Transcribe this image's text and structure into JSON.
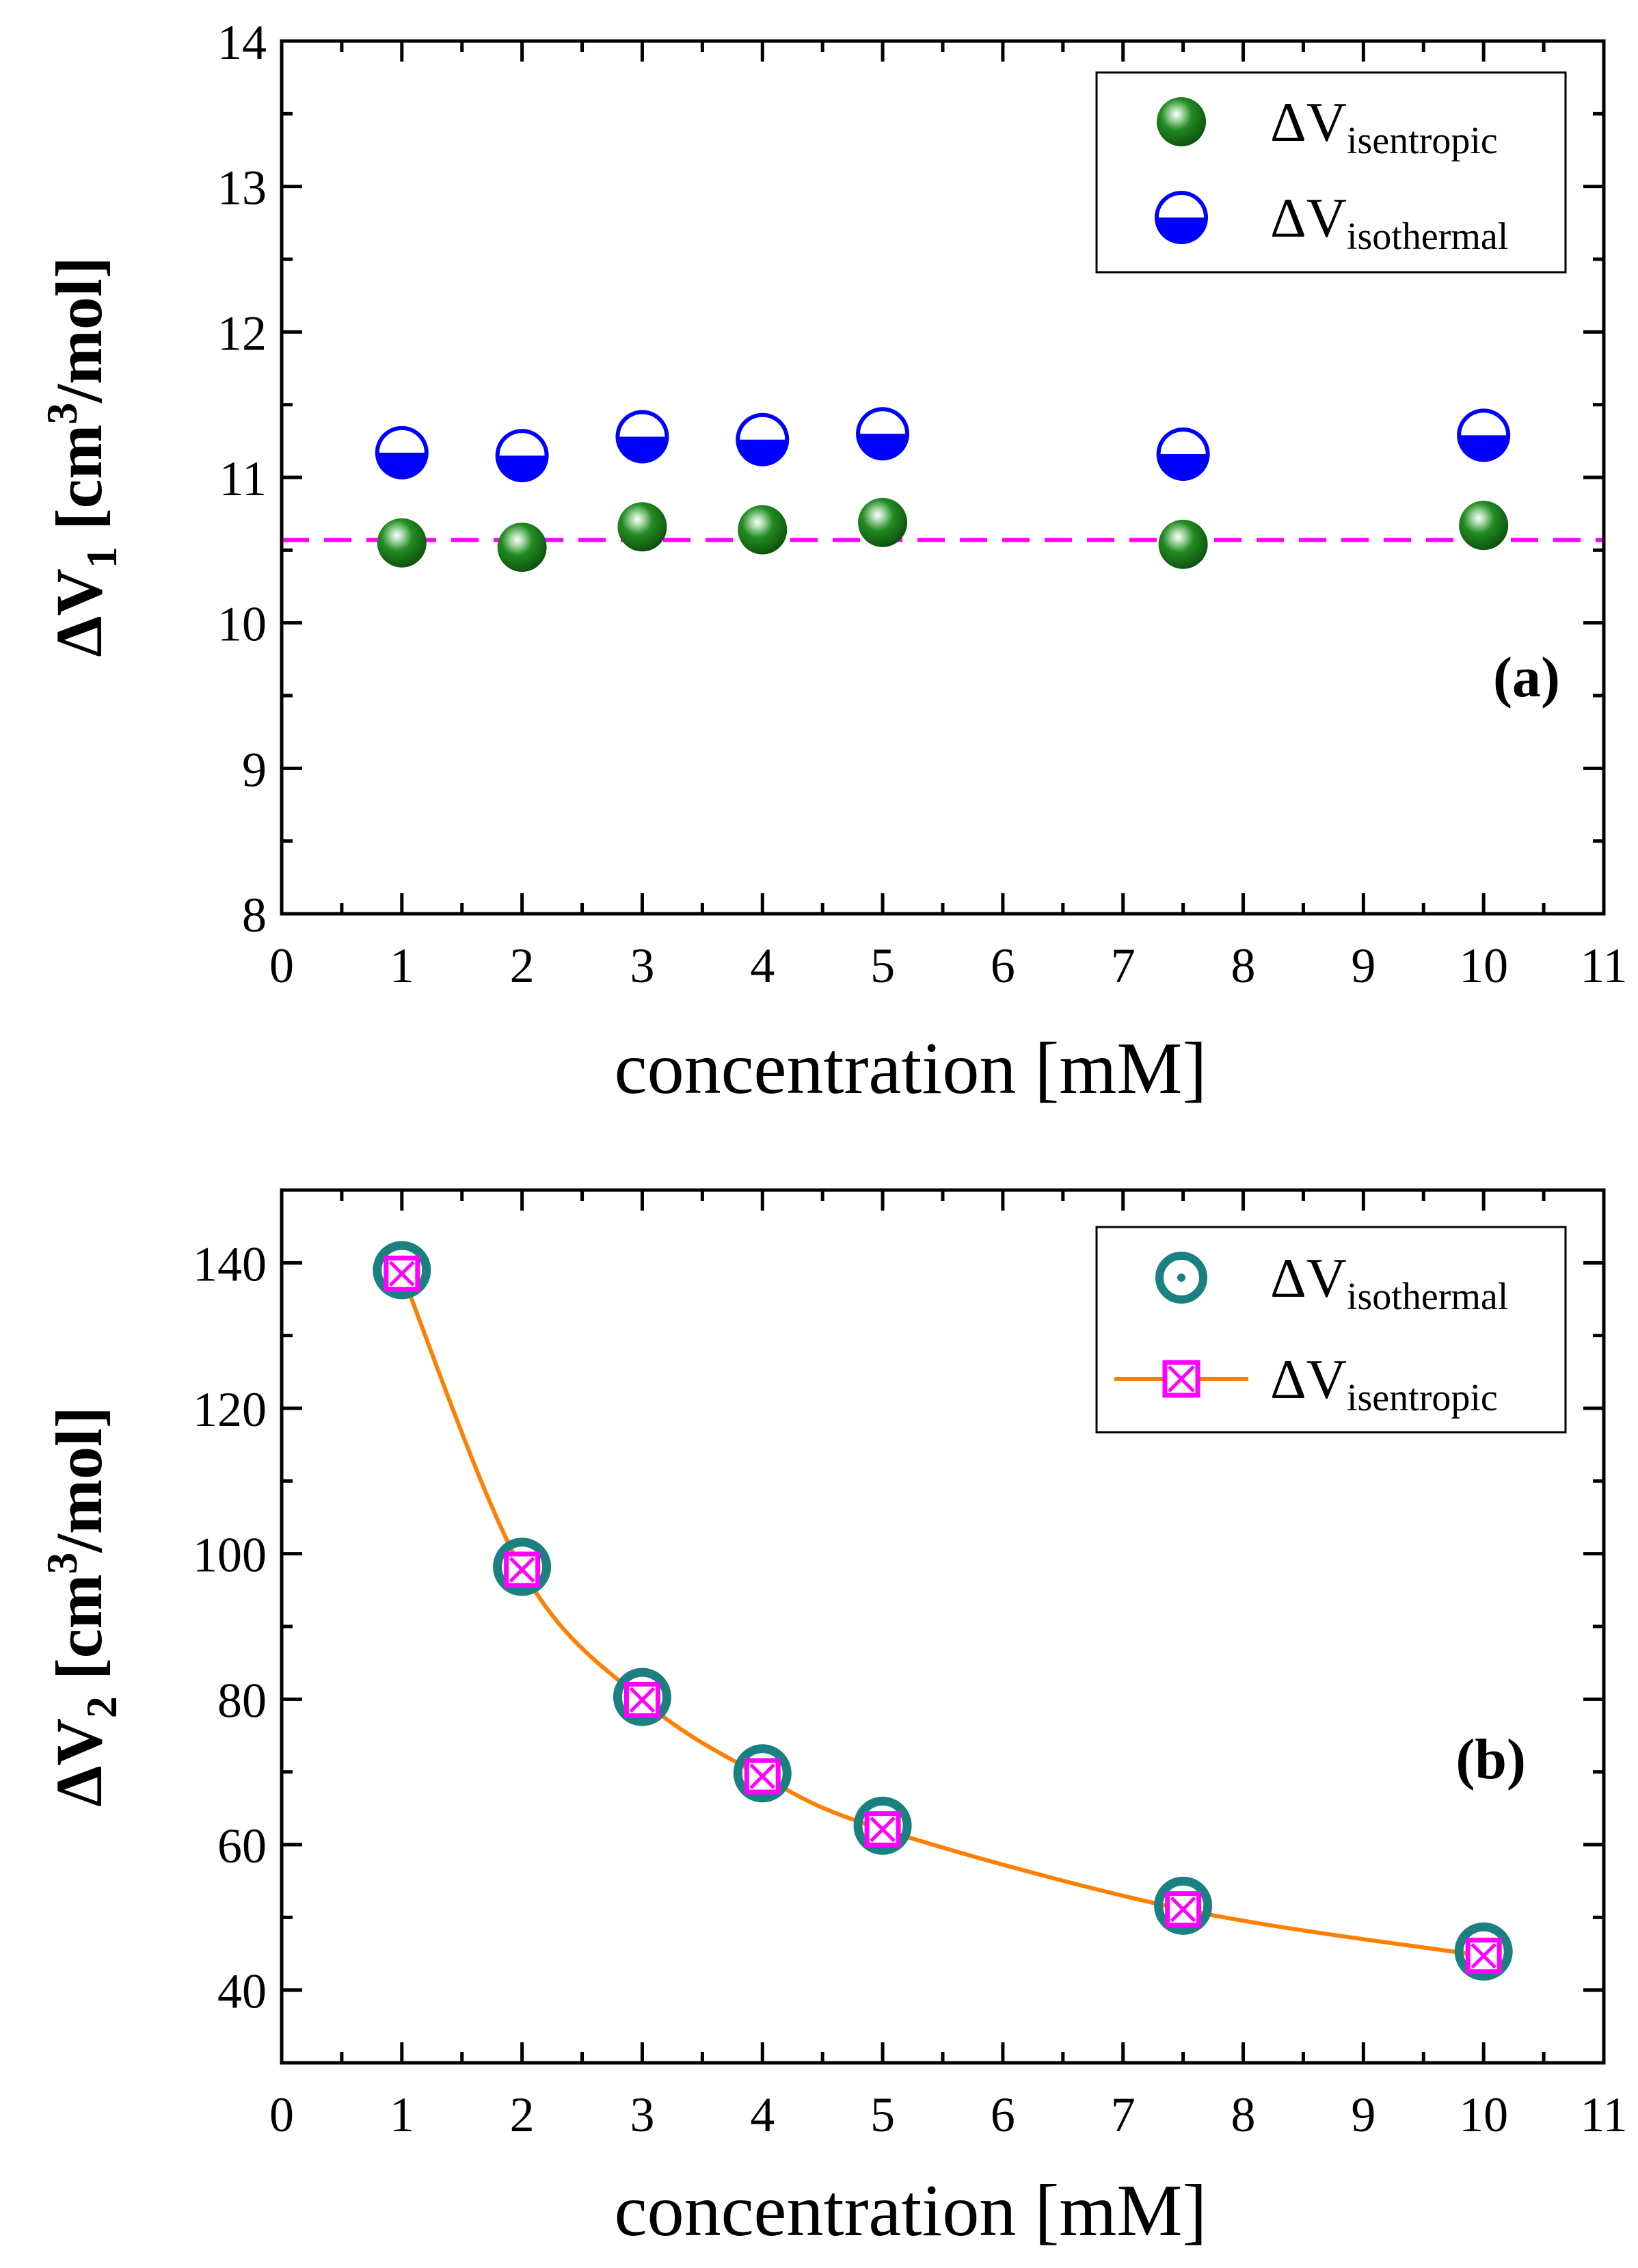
{
  "colors": {
    "green": "#228B22",
    "blue": "#0000FF",
    "magenta": "#FF00FF",
    "teal": "#1A8080",
    "orange": "#FF8000"
  },
  "chart_data": [
    {
      "type": "scatter",
      "panel_label": "(a)",
      "xlabel": "concentration [mM]",
      "ylabel": {
        "prefix": "ΔV",
        "sub": "1",
        "mid": " [cm",
        "sup": "3",
        "suffix": "/mol]"
      },
      "xlim": [
        0,
        11
      ],
      "ylim": [
        8,
        14
      ],
      "xticks": [
        "0",
        "1",
        "2",
        "3",
        "4",
        "5",
        "6",
        "7",
        "8",
        "9",
        "10",
        "11"
      ],
      "yticks": [
        "8",
        "9",
        "10",
        "11",
        "12",
        "13",
        "14"
      ],
      "x": [
        1,
        2,
        3,
        4,
        5,
        7.5,
        10
      ],
      "series": [
        {
          "name": "ΔV",
          "sub": "isentropic",
          "marker": "green-sphere",
          "values": [
            10.55,
            10.52,
            10.66,
            10.64,
            10.69,
            10.54,
            10.67
          ]
        },
        {
          "name": "ΔV",
          "sub": "isothermal",
          "marker": "blue-half-circle",
          "values": [
            11.17,
            11.15,
            11.28,
            11.26,
            11.3,
            11.16,
            11.29
          ]
        }
      ],
      "reference_line": {
        "y": 10.57,
        "style": "dashed",
        "color": "magenta"
      },
      "legend_position": "top-right"
    },
    {
      "type": "line",
      "panel_label": "(b)",
      "xlabel": "concentration [mM]",
      "ylabel": {
        "prefix": "ΔV",
        "sub": "2",
        "mid": " [cm",
        "sup": "3",
        "suffix": "/mol]"
      },
      "xlim": [
        0,
        11
      ],
      "ylim": [
        30,
        150
      ],
      "xticks": [
        "0",
        "1",
        "2",
        "3",
        "4",
        "5",
        "6",
        "7",
        "8",
        "9",
        "10",
        "11"
      ],
      "yticks": [
        "40",
        "60",
        "80",
        "100",
        "120",
        "140"
      ],
      "x": [
        1,
        2,
        3,
        4,
        5,
        7.5,
        10
      ],
      "series": [
        {
          "name": "ΔV",
          "sub": "isothermal",
          "marker": "teal-ring",
          "values": [
            139.0,
            98.2,
            80.3,
            69.8,
            62.6,
            51.6,
            45.3
          ]
        },
        {
          "name": "ΔV",
          "sub": "isentropic",
          "marker": "magenta-boxed-x",
          "line_color": "orange",
          "values": [
            138.5,
            97.8,
            79.9,
            69.4,
            62.1,
            51.1,
            44.7
          ]
        }
      ],
      "legend_position": "top-right"
    }
  ]
}
